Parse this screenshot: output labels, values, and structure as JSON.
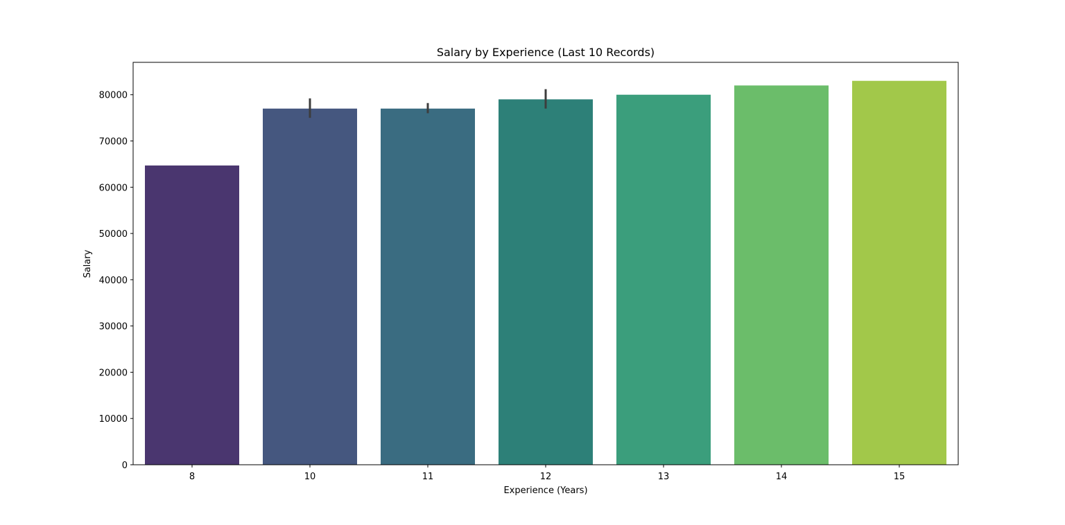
{
  "chart_data": {
    "type": "bar",
    "title": "Salary by Experience (Last 10 Records)",
    "xlabel": "Experience (Years)",
    "ylabel": "Salary",
    "categories": [
      "8",
      "10",
      "11",
      "12",
      "13",
      "14",
      "15"
    ],
    "values": [
      64700,
      77000,
      77000,
      79000,
      80000,
      82000,
      83000
    ],
    "error_bars": [
      null,
      {
        "low": 75000,
        "high": 79200
      },
      {
        "low": 76000,
        "high": 78200
      },
      {
        "low": 77000,
        "high": 81200
      },
      null,
      null,
      null
    ],
    "colors": [
      "#4a366f",
      "#45577f",
      "#3a6c81",
      "#2d8078",
      "#3b9e7c",
      "#6bbd6a",
      "#a2c84a"
    ],
    "error_bar_color": "#3d3d3d",
    "ylim": [
      0,
      87000
    ],
    "yticks": [
      0,
      10000,
      20000,
      30000,
      40000,
      50000,
      60000,
      70000,
      80000
    ],
    "ytick_labels": [
      "0",
      "10000",
      "20000",
      "30000",
      "40000",
      "50000",
      "60000",
      "70000",
      "80000"
    ],
    "grid": false,
    "legend": false
  }
}
